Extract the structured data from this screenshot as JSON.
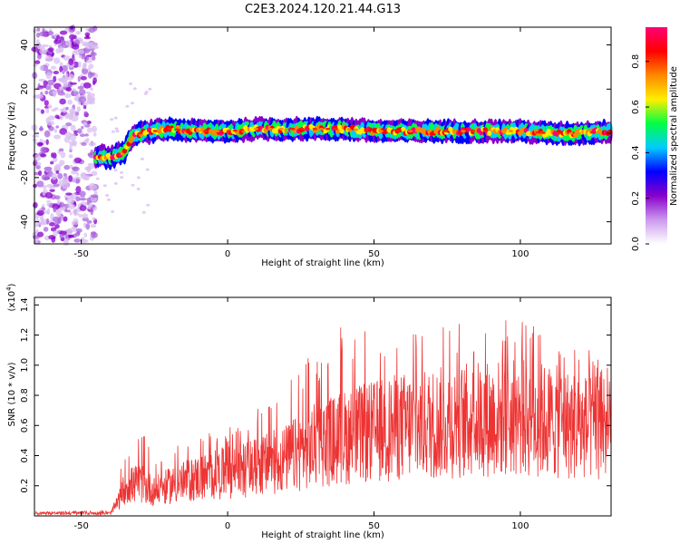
{
  "title": "C2E3.2024.120.21.44.G13",
  "chart_data": [
    {
      "type": "heatmap",
      "xlabel": "Height of straight line (km)",
      "ylabel": "Frequency (Hz)",
      "xlim": [
        -66,
        131
      ],
      "ylim": [
        -50,
        48
      ],
      "x_ticks": [
        -50,
        0,
        50,
        100
      ],
      "y_ticks": [
        -40,
        -20,
        0,
        20,
        40
      ],
      "colorbar": {
        "label": "Normalized spectral amplitude",
        "range": [
          0,
          0.95
        ],
        "ticks": [
          0.0,
          0.2,
          0.4,
          0.6,
          0.8
        ],
        "colors": [
          "#ffffff",
          "#cc99ee",
          "#8800cc",
          "#0000ff",
          "#00ccff",
          "#00ff44",
          "#ffee00",
          "#ff8800",
          "#ff0000",
          "#ff0077"
        ]
      },
      "ridge": {
        "x": [
          -45,
          -40,
          -35,
          -33,
          -30,
          -25,
          -20,
          -10,
          0,
          10,
          20,
          30,
          40,
          50,
          60,
          70,
          80,
          90,
          100,
          110,
          120,
          131
        ],
        "frequency": [
          -10,
          -11,
          -8,
          -2,
          0,
          1,
          2,
          1,
          1,
          2,
          2,
          2,
          2,
          1,
          1,
          1,
          1,
          1,
          1,
          0,
          0,
          1
        ]
      },
      "noise_region_x": [
        -66,
        -45
      ]
    },
    {
      "type": "line",
      "xlabel": "Height of straight line (km)",
      "ylabel": "SNR (10 * v/v)",
      "y_multiplier": "(x10",
      "y_multiplier_exp": "4",
      "y_multiplier_close": ")",
      "xlim": [
        -66,
        131
      ],
      "ylim": [
        0,
        1.45
      ],
      "x_ticks": [
        -50,
        0,
        50,
        100
      ],
      "y_ticks": [
        0.2,
        0.4,
        0.6,
        0.8,
        1.0,
        1.2,
        1.4
      ],
      "series_color": "#ee3333",
      "envelope": {
        "x": [
          -66,
          -40,
          -37,
          -35,
          -30,
          -25,
          -20,
          -10,
          0,
          10,
          20,
          30,
          40,
          50,
          60,
          70,
          80,
          90,
          100,
          110,
          120,
          131
        ],
        "mean": [
          0.02,
          0.02,
          0.12,
          0.22,
          0.24,
          0.18,
          0.22,
          0.28,
          0.32,
          0.36,
          0.42,
          0.52,
          0.58,
          0.62,
          0.66,
          0.68,
          0.7,
          0.72,
          0.72,
          0.7,
          0.66,
          0.62
        ],
        "peak": [
          0.03,
          0.04,
          0.3,
          0.38,
          0.62,
          0.4,
          0.48,
          0.55,
          0.6,
          0.75,
          0.9,
          1.1,
          1.35,
          1.3,
          1.25,
          1.3,
          1.28,
          1.35,
          1.45,
          1.3,
          1.15,
          1.0
        ]
      }
    }
  ]
}
